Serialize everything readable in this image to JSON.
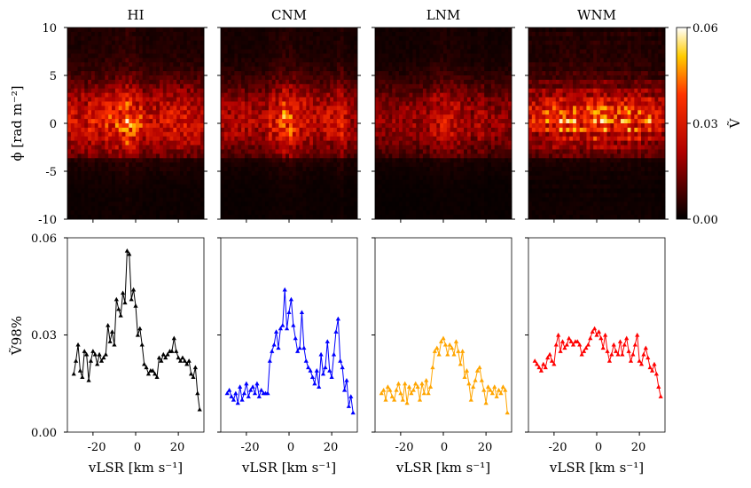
{
  "chart_data": {
    "type": "heatmap+line",
    "colorbar": {
      "ticks": [
        "0.00",
        "0.03",
        "0.06"
      ],
      "label": "Ṽ",
      "range": [
        0,
        0.06
      ]
    },
    "heatmap": {
      "ylabel": "ϕ [rad m⁻²]",
      "yticks": [
        "10",
        "5",
        "0",
        "-5",
        "-10"
      ],
      "yrange": [
        -10,
        10
      ]
    },
    "lineplot": {
      "ylabel": "Ṽ98%",
      "yticks": [
        "0.06",
        "0.03",
        "0.00"
      ],
      "ylim": [
        0,
        0.06
      ],
      "xlabel": "vLSR [km s⁻¹]",
      "xticks": [
        "-20",
        "0",
        "20"
      ],
      "xlim": [
        -32,
        32
      ]
    },
    "panels": [
      {
        "title": "HI",
        "color": "#000000",
        "x": [
          -29,
          -28,
          -27,
          -26,
          -25,
          -24,
          -23,
          -22,
          -21,
          -20,
          -19,
          -18,
          -17,
          -16,
          -15,
          -14,
          -13,
          -12,
          -11,
          -10,
          -9,
          -8,
          -7,
          -6,
          -5,
          -4,
          -3,
          -2,
          -1,
          0,
          1,
          2,
          3,
          4,
          5,
          6,
          7,
          8,
          9,
          10,
          11,
          12,
          13,
          14,
          15,
          16,
          17,
          18,
          19,
          20,
          21,
          22,
          23,
          24,
          25,
          26,
          27,
          28,
          29,
          30
        ],
        "values": [
          0.018,
          0.022,
          0.027,
          0.019,
          0.017,
          0.025,
          0.024,
          0.016,
          0.022,
          0.025,
          0.024,
          0.021,
          0.024,
          0.022,
          0.023,
          0.024,
          0.033,
          0.028,
          0.031,
          0.027,
          0.041,
          0.038,
          0.036,
          0.043,
          0.04,
          0.056,
          0.055,
          0.041,
          0.044,
          0.039,
          0.03,
          0.032,
          0.027,
          0.021,
          0.02,
          0.018,
          0.019,
          0.019,
          0.018,
          0.017,
          0.023,
          0.022,
          0.024,
          0.023,
          0.024,
          0.025,
          0.025,
          0.029,
          0.025,
          0.023,
          0.022,
          0.023,
          0.022,
          0.021,
          0.022,
          0.018,
          0.017,
          0.02,
          0.012,
          0.007
        ]
      },
      {
        "title": "CNM",
        "color": "#0000ff",
        "x": [
          -29,
          -28,
          -27,
          -26,
          -25,
          -24,
          -23,
          -22,
          -21,
          -20,
          -19,
          -18,
          -17,
          -16,
          -15,
          -14,
          -13,
          -12,
          -11,
          -10,
          -9,
          -8,
          -7,
          -6,
          -5,
          -4,
          -3,
          -2,
          -1,
          0,
          1,
          2,
          3,
          4,
          5,
          6,
          7,
          8,
          9,
          10,
          11,
          12,
          13,
          14,
          15,
          16,
          17,
          18,
          19,
          20,
          21,
          22,
          23,
          24,
          25,
          26,
          27,
          28,
          29,
          30
        ],
        "values": [
          0.012,
          0.013,
          0.011,
          0.01,
          0.012,
          0.009,
          0.014,
          0.01,
          0.012,
          0.015,
          0.011,
          0.013,
          0.014,
          0.012,
          0.015,
          0.011,
          0.013,
          0.012,
          0.012,
          0.012,
          0.022,
          0.025,
          0.027,
          0.031,
          0.026,
          0.032,
          0.033,
          0.044,
          0.032,
          0.037,
          0.041,
          0.033,
          0.029,
          0.025,
          0.026,
          0.037,
          0.026,
          0.022,
          0.02,
          0.019,
          0.017,
          0.015,
          0.019,
          0.014,
          0.024,
          0.018,
          0.02,
          0.028,
          0.019,
          0.017,
          0.024,
          0.031,
          0.035,
          0.022,
          0.02,
          0.013,
          0.016,
          0.008,
          0.011,
          0.006
        ]
      },
      {
        "title": "LNM",
        "color": "#ffa500",
        "x": [
          -29,
          -28,
          -27,
          -26,
          -25,
          -24,
          -23,
          -22,
          -21,
          -20,
          -19,
          -18,
          -17,
          -16,
          -15,
          -14,
          -13,
          -12,
          -11,
          -10,
          -9,
          -8,
          -7,
          -6,
          -5,
          -4,
          -3,
          -2,
          -1,
          0,
          1,
          2,
          3,
          4,
          5,
          6,
          7,
          8,
          9,
          10,
          11,
          12,
          13,
          14,
          15,
          16,
          17,
          18,
          19,
          20,
          21,
          22,
          23,
          24,
          25,
          26,
          27,
          28,
          29,
          30
        ],
        "values": [
          0.012,
          0.013,
          0.01,
          0.014,
          0.013,
          0.011,
          0.01,
          0.013,
          0.015,
          0.012,
          0.01,
          0.015,
          0.009,
          0.014,
          0.012,
          0.013,
          0.015,
          0.014,
          0.01,
          0.015,
          0.012,
          0.016,
          0.012,
          0.014,
          0.02,
          0.025,
          0.026,
          0.024,
          0.028,
          0.029,
          0.027,
          0.024,
          0.027,
          0.026,
          0.024,
          0.028,
          0.025,
          0.021,
          0.025,
          0.017,
          0.019,
          0.015,
          0.01,
          0.014,
          0.016,
          0.019,
          0.02,
          0.016,
          0.013,
          0.009,
          0.014,
          0.013,
          0.012,
          0.014,
          0.011,
          0.013,
          0.012,
          0.014,
          0.013,
          0.006
        ]
      },
      {
        "title": "WNM",
        "color": "#ff0000",
        "x": [
          -29,
          -28,
          -27,
          -26,
          -25,
          -24,
          -23,
          -22,
          -21,
          -20,
          -19,
          -18,
          -17,
          -16,
          -15,
          -14,
          -13,
          -12,
          -11,
          -10,
          -9,
          -8,
          -7,
          -6,
          -5,
          -4,
          -3,
          -2,
          -1,
          0,
          1,
          2,
          3,
          4,
          5,
          6,
          7,
          8,
          9,
          10,
          11,
          12,
          13,
          14,
          15,
          16,
          17,
          18,
          19,
          20,
          21,
          22,
          23,
          24,
          25,
          26,
          27,
          28,
          29,
          30
        ],
        "values": [
          0.022,
          0.021,
          0.02,
          0.019,
          0.021,
          0.02,
          0.023,
          0.024,
          0.022,
          0.021,
          0.027,
          0.03,
          0.025,
          0.028,
          0.026,
          0.027,
          0.029,
          0.028,
          0.027,
          0.028,
          0.028,
          0.027,
          0.024,
          0.025,
          0.026,
          0.027,
          0.029,
          0.031,
          0.032,
          0.03,
          0.031,
          0.029,
          0.026,
          0.03,
          0.025,
          0.022,
          0.024,
          0.027,
          0.025,
          0.024,
          0.028,
          0.024,
          0.027,
          0.029,
          0.025,
          0.022,
          0.024,
          0.027,
          0.03,
          0.022,
          0.021,
          0.024,
          0.026,
          0.023,
          0.02,
          0.019,
          0.021,
          0.018,
          0.014,
          0.011
        ]
      }
    ]
  }
}
